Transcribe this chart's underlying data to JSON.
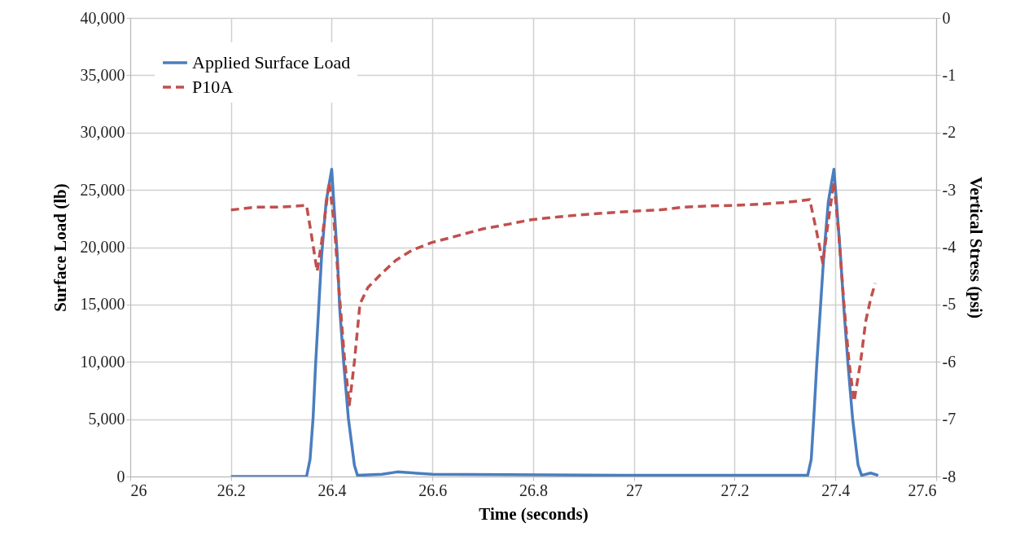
{
  "chart_data": {
    "type": "line",
    "xlabel": "Time (seconds)",
    "ylabel": "Surface Load (lb)",
    "y2label": "Vertical Stress (psi)",
    "xlim": [
      26,
      27.6
    ],
    "xticks": [
      26,
      26.2,
      26.4,
      26.6,
      26.8,
      27,
      27.2,
      27.4,
      27.6
    ],
    "ylim": [
      0,
      40000
    ],
    "yticks": [
      0,
      {
        "value": 5000,
        "label": "5,000"
      },
      {
        "value": 10000,
        "label": "10,000"
      },
      {
        "value": 15000,
        "label": "15,000"
      },
      {
        "value": 20000,
        "label": "20,000"
      },
      {
        "value": 25000,
        "label": "25,000"
      },
      {
        "value": 30000,
        "label": "30,000"
      },
      {
        "value": 35000,
        "label": "35,000"
      },
      {
        "value": 40000,
        "label": "40,000"
      }
    ],
    "y2lim": [
      -8,
      0
    ],
    "y2ticks": [
      -8,
      -7,
      -6,
      -5,
      -4,
      -3,
      -2,
      -1,
      0
    ],
    "grid": true,
    "legend": "top left",
    "marker": "none",
    "series": [
      {
        "name": "Applied Surface Load",
        "color": "#4a7ebf",
        "line_style": "solid",
        "x": [
          26.2,
          26.35,
          26.357,
          26.363,
          26.368,
          26.374,
          26.38,
          26.389,
          26.4,
          26.404,
          26.411,
          26.416,
          26.424,
          26.433,
          26.445,
          26.451,
          26.5,
          26.53,
          26.6,
          27,
          27.345,
          27.352,
          27.357,
          27.363,
          27.37,
          27.377,
          27.386,
          27.397,
          27.402,
          27.41,
          27.417,
          27.425,
          27.434,
          27.445,
          27.452,
          27.47,
          27.485
        ],
        "values": [
          0,
          0,
          1500,
          5100,
          9800,
          14560,
          19300,
          24000,
          26800,
          24000,
          19300,
          14560,
          9800,
          5100,
          1000,
          100,
          200,
          400,
          200,
          100,
          100,
          1500,
          5100,
          9800,
          14560,
          19300,
          24000,
          26800,
          24000,
          19300,
          14560,
          9800,
          5100,
          1000,
          100,
          300,
          100
        ]
      },
      {
        "name": "P10A",
        "color": "#c0504d",
        "line_style": "dashed",
        "axis": "y2",
        "x": [
          26.2,
          26.25,
          26.3,
          26.35,
          26.36,
          26.371,
          26.38,
          26.395,
          26.405,
          26.415,
          26.425,
          26.435,
          26.445,
          26.456,
          26.472,
          26.5,
          26.527,
          26.56,
          26.598,
          26.65,
          26.7,
          26.75,
          26.796,
          26.85,
          26.9,
          26.95,
          27,
          27.05,
          27.1,
          27.15,
          27.2,
          27.25,
          27.3,
          27.349,
          27.362,
          27.375,
          27.385,
          27.397,
          27.407,
          27.417,
          27.427,
          27.437,
          27.45,
          27.46,
          27.47,
          27.479
        ],
        "values": [
          -3.35,
          -3.3,
          -3.3,
          -3.27,
          -3.8,
          -4.42,
          -3.9,
          -2.86,
          -3.6,
          -4.8,
          -5.9,
          -6.75,
          -6.0,
          -4.99,
          -4.7,
          -4.45,
          -4.23,
          -4.05,
          -3.92,
          -3.8,
          -3.68,
          -3.6,
          -3.52,
          -3.47,
          -3.43,
          -3.4,
          -3.37,
          -3.35,
          -3.3,
          -3.28,
          -3.27,
          -3.25,
          -3.22,
          -3.17,
          -3.7,
          -4.28,
          -3.6,
          -2.86,
          -3.8,
          -5.0,
          -6.0,
          -6.69,
          -6.0,
          -5.3,
          -4.9,
          -4.63
        ]
      }
    ]
  }
}
